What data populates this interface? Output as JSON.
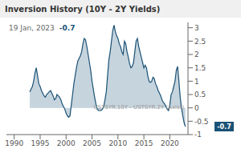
{
  "chart_data": {
    "type": "area",
    "title": "Inversion History (10Y - 2Y Yields)",
    "annotations": [
      "19 Jan, 2023",
      "-0.7",
      "USTSYR.10Y - USTSYR.2Y (Axist)"
    ],
    "color": "#1a5276",
    "xlim": [
      1988.5,
      2023.5
    ],
    "ylim": [
      -1.0,
      3.2
    ],
    "xticks": [
      1990,
      1995,
      2000,
      2005,
      2010,
      2015,
      2020
    ],
    "yticks": [
      -1,
      -0.5,
      0,
      0.5,
      1,
      1.5,
      2,
      2.5,
      3
    ],
    "x": [
      1993.0,
      1993.25,
      1993.5,
      1993.75,
      1994.0,
      1994.25,
      1994.5,
      1994.75,
      1995.0,
      1995.25,
      1995.5,
      1995.75,
      1996.0,
      1996.25,
      1996.5,
      1996.75,
      1997.0,
      1997.25,
      1997.5,
      1997.75,
      1998.0,
      1998.25,
      1998.5,
      1998.75,
      1999.0,
      1999.25,
      1999.5,
      1999.75,
      2000.0,
      2000.25,
      2000.5,
      2000.75,
      2001.0,
      2001.25,
      2001.5,
      2001.75,
      2002.0,
      2002.25,
      2002.5,
      2002.75,
      2003.0,
      2003.25,
      2003.5,
      2003.75,
      2004.0,
      2004.25,
      2004.5,
      2004.75,
      2005.0,
      2005.25,
      2005.5,
      2005.75,
      2006.0,
      2006.25,
      2006.5,
      2006.75,
      2007.0,
      2007.25,
      2007.5,
      2007.75,
      2008.0,
      2008.25,
      2008.5,
      2008.75,
      2009.0,
      2009.25,
      2009.5,
      2009.75,
      2010.0,
      2010.25,
      2010.5,
      2010.75,
      2011.0,
      2011.25,
      2011.5,
      2011.75,
      2012.0,
      2012.25,
      2012.5,
      2012.75,
      2013.0,
      2013.25,
      2013.5,
      2013.75,
      2014.0,
      2014.25,
      2014.5,
      2014.75,
      2015.0,
      2015.25,
      2015.5,
      2015.75,
      2016.0,
      2016.25,
      2016.5,
      2016.75,
      2017.0,
      2017.25,
      2017.5,
      2017.75,
      2018.0,
      2018.25,
      2018.5,
      2018.75,
      2019.0,
      2019.25,
      2019.5,
      2019.75,
      2020.0,
      2020.25,
      2020.5,
      2020.75,
      2021.0,
      2021.25,
      2021.5,
      2021.75,
      2022.0,
      2022.25,
      2022.5,
      2022.75,
      2023.0
    ],
    "values": [
      0.6,
      0.7,
      0.8,
      1.0,
      1.3,
      1.5,
      1.2,
      0.9,
      0.8,
      0.65,
      0.55,
      0.45,
      0.4,
      0.5,
      0.55,
      0.6,
      0.65,
      0.55,
      0.45,
      0.3,
      0.35,
      0.5,
      0.45,
      0.4,
      0.3,
      0.15,
      0.05,
      -0.05,
      -0.2,
      -0.3,
      -0.35,
      -0.3,
      0.1,
      0.5,
      0.9,
      1.2,
      1.5,
      1.75,
      1.85,
      1.95,
      2.1,
      2.4,
      2.6,
      2.55,
      2.3,
      2.0,
      1.7,
      1.4,
      1.0,
      0.7,
      0.4,
      0.15,
      -0.05,
      -0.1,
      -0.1,
      -0.1,
      -0.05,
      0.05,
      0.3,
      0.6,
      1.2,
      1.8,
      2.1,
      2.5,
      2.9,
      3.1,
      2.85,
      2.7,
      2.6,
      2.4,
      2.3,
      2.1,
      2.0,
      2.5,
      2.4,
      2.1,
      1.9,
      1.65,
      1.5,
      1.55,
      1.7,
      2.1,
      2.5,
      2.6,
      2.3,
      2.1,
      1.9,
      1.7,
      1.5,
      1.6,
      1.5,
      1.2,
      1.0,
      0.95,
      1.0,
      1.15,
      1.1,
      0.9,
      0.8,
      0.65,
      0.55,
      0.45,
      0.3,
      0.2,
      0.15,
      0.05,
      -0.05,
      -0.1,
      0.1,
      0.5,
      0.6,
      0.8,
      1.0,
      1.4,
      1.55,
      1.0,
      0.4,
      0.0,
      -0.3,
      -0.55,
      -0.7
    ]
  }
}
